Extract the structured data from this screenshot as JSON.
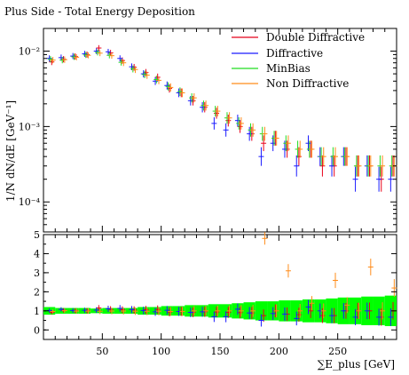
{
  "chart_data": [
    {
      "panel": "main",
      "type": "scatter",
      "title": "Plus Side - Total Energy Deposition",
      "xlabel": "∑E_plus [GeV]",
      "ylabel": "1/N dN/dE [GeV⁻¹]",
      "xlim": [
        0,
        300
      ],
      "ylim": [
        4e-05,
        0.02
      ],
      "yscale": "log",
      "ytick_labels": [
        "10⁻⁴",
        "10⁻³",
        "10⁻²"
      ],
      "legend_position": "top-right",
      "series": [
        {
          "name": "Double Diffractive",
          "color": "#e8001a",
          "x": [
            7,
            17,
            27,
            37,
            47,
            57,
            67,
            77,
            87,
            97,
            107,
            117,
            127,
            137,
            147,
            157,
            167,
            177,
            187,
            197,
            207,
            217,
            227,
            237,
            247,
            257,
            267,
            277,
            287,
            297
          ],
          "y": [
            0.0072,
            0.0078,
            0.0085,
            0.009,
            0.011,
            0.0095,
            0.0075,
            0.0061,
            0.0052,
            0.0045,
            0.0032,
            0.0028,
            0.0022,
            0.0018,
            0.0015,
            0.0012,
            0.001,
            0.0008,
            0.0006,
            0.0007,
            0.0005,
            0.0004,
            0.0005,
            0.0003,
            0.0003,
            0.0004,
            0.0003,
            0.0003,
            0.0002,
            0.0003
          ]
        },
        {
          "name": "Diffractive",
          "color": "#1a1aff",
          "x": [
            5,
            15,
            25,
            35,
            45,
            55,
            65,
            75,
            85,
            95,
            105,
            115,
            125,
            135,
            145,
            155,
            165,
            175,
            185,
            195,
            205,
            215,
            225,
            235,
            245,
            255,
            265,
            275,
            285,
            295
          ],
          "y": [
            0.008,
            0.0082,
            0.0086,
            0.0092,
            0.01,
            0.0098,
            0.008,
            0.0062,
            0.005,
            0.004,
            0.0035,
            0.0028,
            0.0022,
            0.0018,
            0.0011,
            0.0009,
            0.0012,
            0.0008,
            0.0004,
            0.0006,
            0.0005,
            0.0003,
            0.0006,
            0.0004,
            0.0003,
            0.0004,
            0.0002,
            0.0003,
            0.0002,
            0.0002
          ]
        },
        {
          "name": "MinBias",
          "color": "#22dd22",
          "x": [
            6,
            16,
            26,
            36,
            46,
            56,
            66,
            76,
            86,
            96,
            106,
            116,
            126,
            136,
            146,
            156,
            166,
            176,
            186,
            196,
            206,
            216,
            226,
            236,
            246,
            256,
            266,
            276,
            286,
            296
          ],
          "y": [
            0.0078,
            0.0076,
            0.0084,
            0.0089,
            0.0096,
            0.0088,
            0.0071,
            0.0058,
            0.0049,
            0.0042,
            0.0034,
            0.0029,
            0.0024,
            0.0019,
            0.0016,
            0.0013,
            0.0011,
            0.0009,
            0.0008,
            0.0007,
            0.0006,
            0.0005,
            0.0005,
            0.0004,
            0.0004,
            0.0004,
            0.0003,
            0.0003,
            0.0003,
            0.0003
          ]
        },
        {
          "name": "Non Diffractive",
          "color": "#ff8c1a",
          "x": [
            8,
            18,
            28,
            38,
            48,
            58,
            68,
            78,
            88,
            98,
            108,
            118,
            128,
            138,
            148,
            158,
            168,
            178,
            188,
            198,
            208,
            218,
            228,
            238,
            248,
            258,
            268,
            278,
            288,
            298
          ],
          "y": [
            0.0076,
            0.0077,
            0.0083,
            0.0088,
            0.0094,
            0.0087,
            0.007,
            0.0057,
            0.0048,
            0.0041,
            0.0033,
            0.0028,
            0.0024,
            0.0019,
            0.0016,
            0.0013,
            0.0011,
            0.0009,
            0.0008,
            0.0007,
            0.0006,
            0.0005,
            0.0005,
            0.0004,
            0.0004,
            0.0004,
            0.0003,
            0.0003,
            0.0003,
            0.0003
          ]
        }
      ]
    },
    {
      "panel": "ratio",
      "type": "scatter",
      "xlabel": "∑E_plus [GeV]",
      "xlim": [
        0,
        300
      ],
      "ylim": [
        -0.5,
        5
      ],
      "xtick_labels": [
        "50",
        "100",
        "150",
        "200",
        "250"
      ],
      "ytick_labels": [
        "0",
        "1",
        "2",
        "3",
        "4",
        "5"
      ],
      "band": {
        "color": "#00ff00",
        "x": [
          5,
          15,
          25,
          35,
          45,
          55,
          65,
          75,
          85,
          95,
          105,
          115,
          125,
          135,
          145,
          155,
          165,
          175,
          185,
          195,
          205,
          215,
          225,
          235,
          245,
          255,
          265,
          275,
          285,
          295
        ],
        "halfwidth": [
          0.2,
          0.15,
          0.15,
          0.15,
          0.12,
          0.15,
          0.15,
          0.15,
          0.2,
          0.2,
          0.25,
          0.25,
          0.3,
          0.3,
          0.35,
          0.35,
          0.4,
          0.45,
          0.5,
          0.5,
          0.55,
          0.55,
          0.6,
          0.6,
          0.65,
          0.7,
          0.7,
          0.75,
          0.75,
          0.8
        ]
      },
      "series": [
        {
          "name": "Double Diffractive",
          "color": "#e8001a",
          "x": [
            7,
            17,
            27,
            37,
            47,
            57,
            67,
            77,
            87,
            97,
            107,
            117,
            127,
            137,
            147,
            157,
            167,
            177,
            187,
            197,
            207,
            217,
            227,
            237,
            247,
            257,
            267,
            277,
            287,
            297
          ],
          "y": [
            0.92,
            1.03,
            1.01,
            1.01,
            1.15,
            1.08,
            1.06,
            1.05,
            1.06,
            1.07,
            0.94,
            0.97,
            0.92,
            0.95,
            0.94,
            0.92,
            0.91,
            0.89,
            0.75,
            1.0,
            0.83,
            0.8,
            1.0,
            0.75,
            0.75,
            1.0,
            1.0,
            1.0,
            0.67,
            1.0
          ]
        },
        {
          "name": "Diffractive",
          "color": "#1a1aff",
          "x": [
            5,
            15,
            25,
            35,
            45,
            55,
            65,
            75,
            85,
            95,
            105,
            115,
            125,
            135,
            145,
            155,
            165,
            175,
            185,
            195,
            205,
            215,
            225,
            235,
            245,
            255,
            265,
            275,
            285,
            295
          ],
          "y": [
            1.02,
            1.08,
            1.02,
            1.03,
            1.04,
            1.11,
            1.13,
            1.07,
            1.02,
            0.95,
            1.03,
            0.97,
            0.92,
            0.95,
            0.69,
            0.69,
            1.09,
            0.89,
            0.5,
            0.86,
            0.83,
            0.6,
            1.2,
            1.0,
            0.75,
            1.0,
            0.67,
            1.0,
            0.67,
            0.67
          ]
        },
        {
          "name": "Non Diffractive",
          "color": "#ff8c1a",
          "x": [
            8,
            18,
            28,
            38,
            48,
            58,
            68,
            78,
            88,
            98,
            108,
            118,
            128,
            138,
            148,
            158,
            168,
            178,
            188,
            198,
            208,
            218,
            228,
            238,
            248,
            258,
            268,
            278,
            288,
            298
          ],
          "y": [
            0.97,
            1.01,
            0.99,
            0.99,
            0.98,
            0.99,
            0.99,
            0.98,
            0.98,
            0.98,
            0.97,
            0.97,
            1.0,
            1.0,
            1.0,
            1.0,
            1.0,
            1.0,
            4.8,
            1.0,
            3.1,
            1.0,
            1.4,
            1.0,
            2.6,
            1.3,
            1.0,
            3.3,
            1.0,
            2.2
          ]
        }
      ]
    }
  ]
}
